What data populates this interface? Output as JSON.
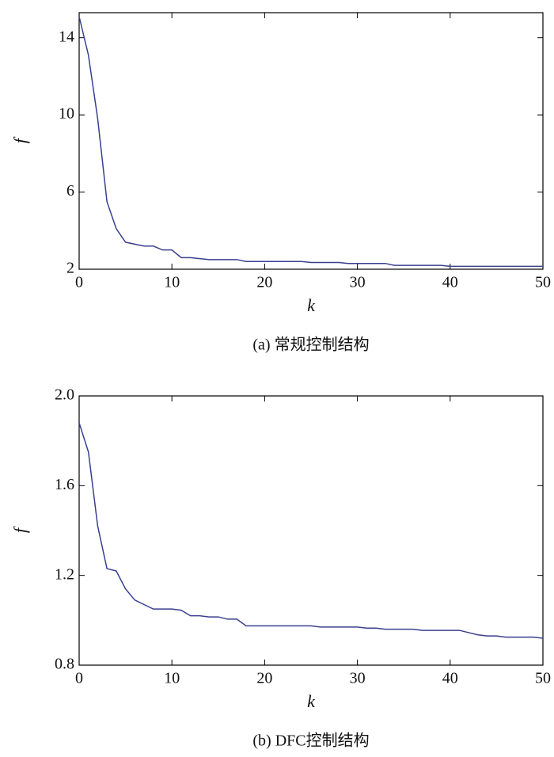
{
  "chart_data": [
    {
      "type": "line",
      "subtitle": "(a) 常规控制结构",
      "xlabel": "k",
      "ylabel": "f",
      "x": [
        0,
        1,
        2,
        3,
        4,
        5,
        6,
        7,
        8,
        9,
        10,
        11,
        12,
        13,
        14,
        15,
        16,
        17,
        18,
        19,
        20,
        21,
        22,
        23,
        24,
        25,
        26,
        27,
        28,
        29,
        30,
        31,
        32,
        33,
        34,
        35,
        36,
        37,
        38,
        39,
        40,
        41,
        42,
        43,
        44,
        45,
        46,
        47,
        48,
        49,
        50
      ],
      "series": [
        {
          "color": "#3a3f8f",
          "values": [
            15.1,
            13.1,
            9.8,
            5.5,
            4.1,
            3.4,
            3.3,
            3.2,
            3.2,
            3.0,
            3.0,
            2.6,
            2.6,
            2.55,
            2.5,
            2.5,
            2.5,
            2.5,
            2.4,
            2.4,
            2.4,
            2.4,
            2.4,
            2.4,
            2.4,
            2.35,
            2.35,
            2.35,
            2.35,
            2.3,
            2.3,
            2.3,
            2.3,
            2.3,
            2.2,
            2.2,
            2.2,
            2.2,
            2.2,
            2.2,
            2.15,
            2.15,
            2.15,
            2.15,
            2.15,
            2.15,
            2.15,
            2.15,
            2.15,
            2.15,
            2.15
          ]
        }
      ],
      "xlim": [
        0,
        50
      ],
      "xticks": [
        0,
        10,
        20,
        30,
        40,
        50
      ],
      "ylim": [
        2,
        15.3
      ],
      "yticks": [
        2,
        6,
        10,
        14
      ]
    },
    {
      "type": "line",
      "subtitle": "(b) DFC控制结构",
      "xlabel": "k",
      "ylabel": "f",
      "x": [
        0,
        1,
        2,
        3,
        4,
        5,
        6,
        7,
        8,
        9,
        10,
        11,
        12,
        13,
        14,
        15,
        16,
        17,
        18,
        19,
        20,
        21,
        22,
        23,
        24,
        25,
        26,
        27,
        28,
        29,
        30,
        31,
        32,
        33,
        34,
        35,
        36,
        37,
        38,
        39,
        40,
        41,
        42,
        43,
        44,
        45,
        46,
        47,
        48,
        49,
        50
      ],
      "series": [
        {
          "color": "#3a3f8f",
          "values": [
            1.88,
            1.75,
            1.42,
            1.23,
            1.22,
            1.14,
            1.09,
            1.07,
            1.05,
            1.05,
            1.05,
            1.045,
            1.02,
            1.02,
            1.015,
            1.015,
            1.005,
            1.005,
            0.975,
            0.975,
            0.975,
            0.975,
            0.975,
            0.975,
            0.975,
            0.975,
            0.97,
            0.97,
            0.97,
            0.97,
            0.97,
            0.965,
            0.965,
            0.96,
            0.96,
            0.96,
            0.96,
            0.955,
            0.955,
            0.955,
            0.955,
            0.955,
            0.945,
            0.935,
            0.93,
            0.93,
            0.925,
            0.925,
            0.925,
            0.925,
            0.92
          ]
        }
      ],
      "xlim": [
        0,
        50
      ],
      "xticks": [
        0,
        10,
        20,
        30,
        40,
        50
      ],
      "ylim": [
        0.8,
        2.0
      ],
      "yticks": [
        {
          "value": 0.8,
          "label": "0.8"
        },
        {
          "value": 1.2,
          "label": "1.2"
        },
        {
          "value": 1.6,
          "label": "1.6"
        },
        {
          "value": 2.0,
          "label": "2.0"
        }
      ]
    }
  ]
}
